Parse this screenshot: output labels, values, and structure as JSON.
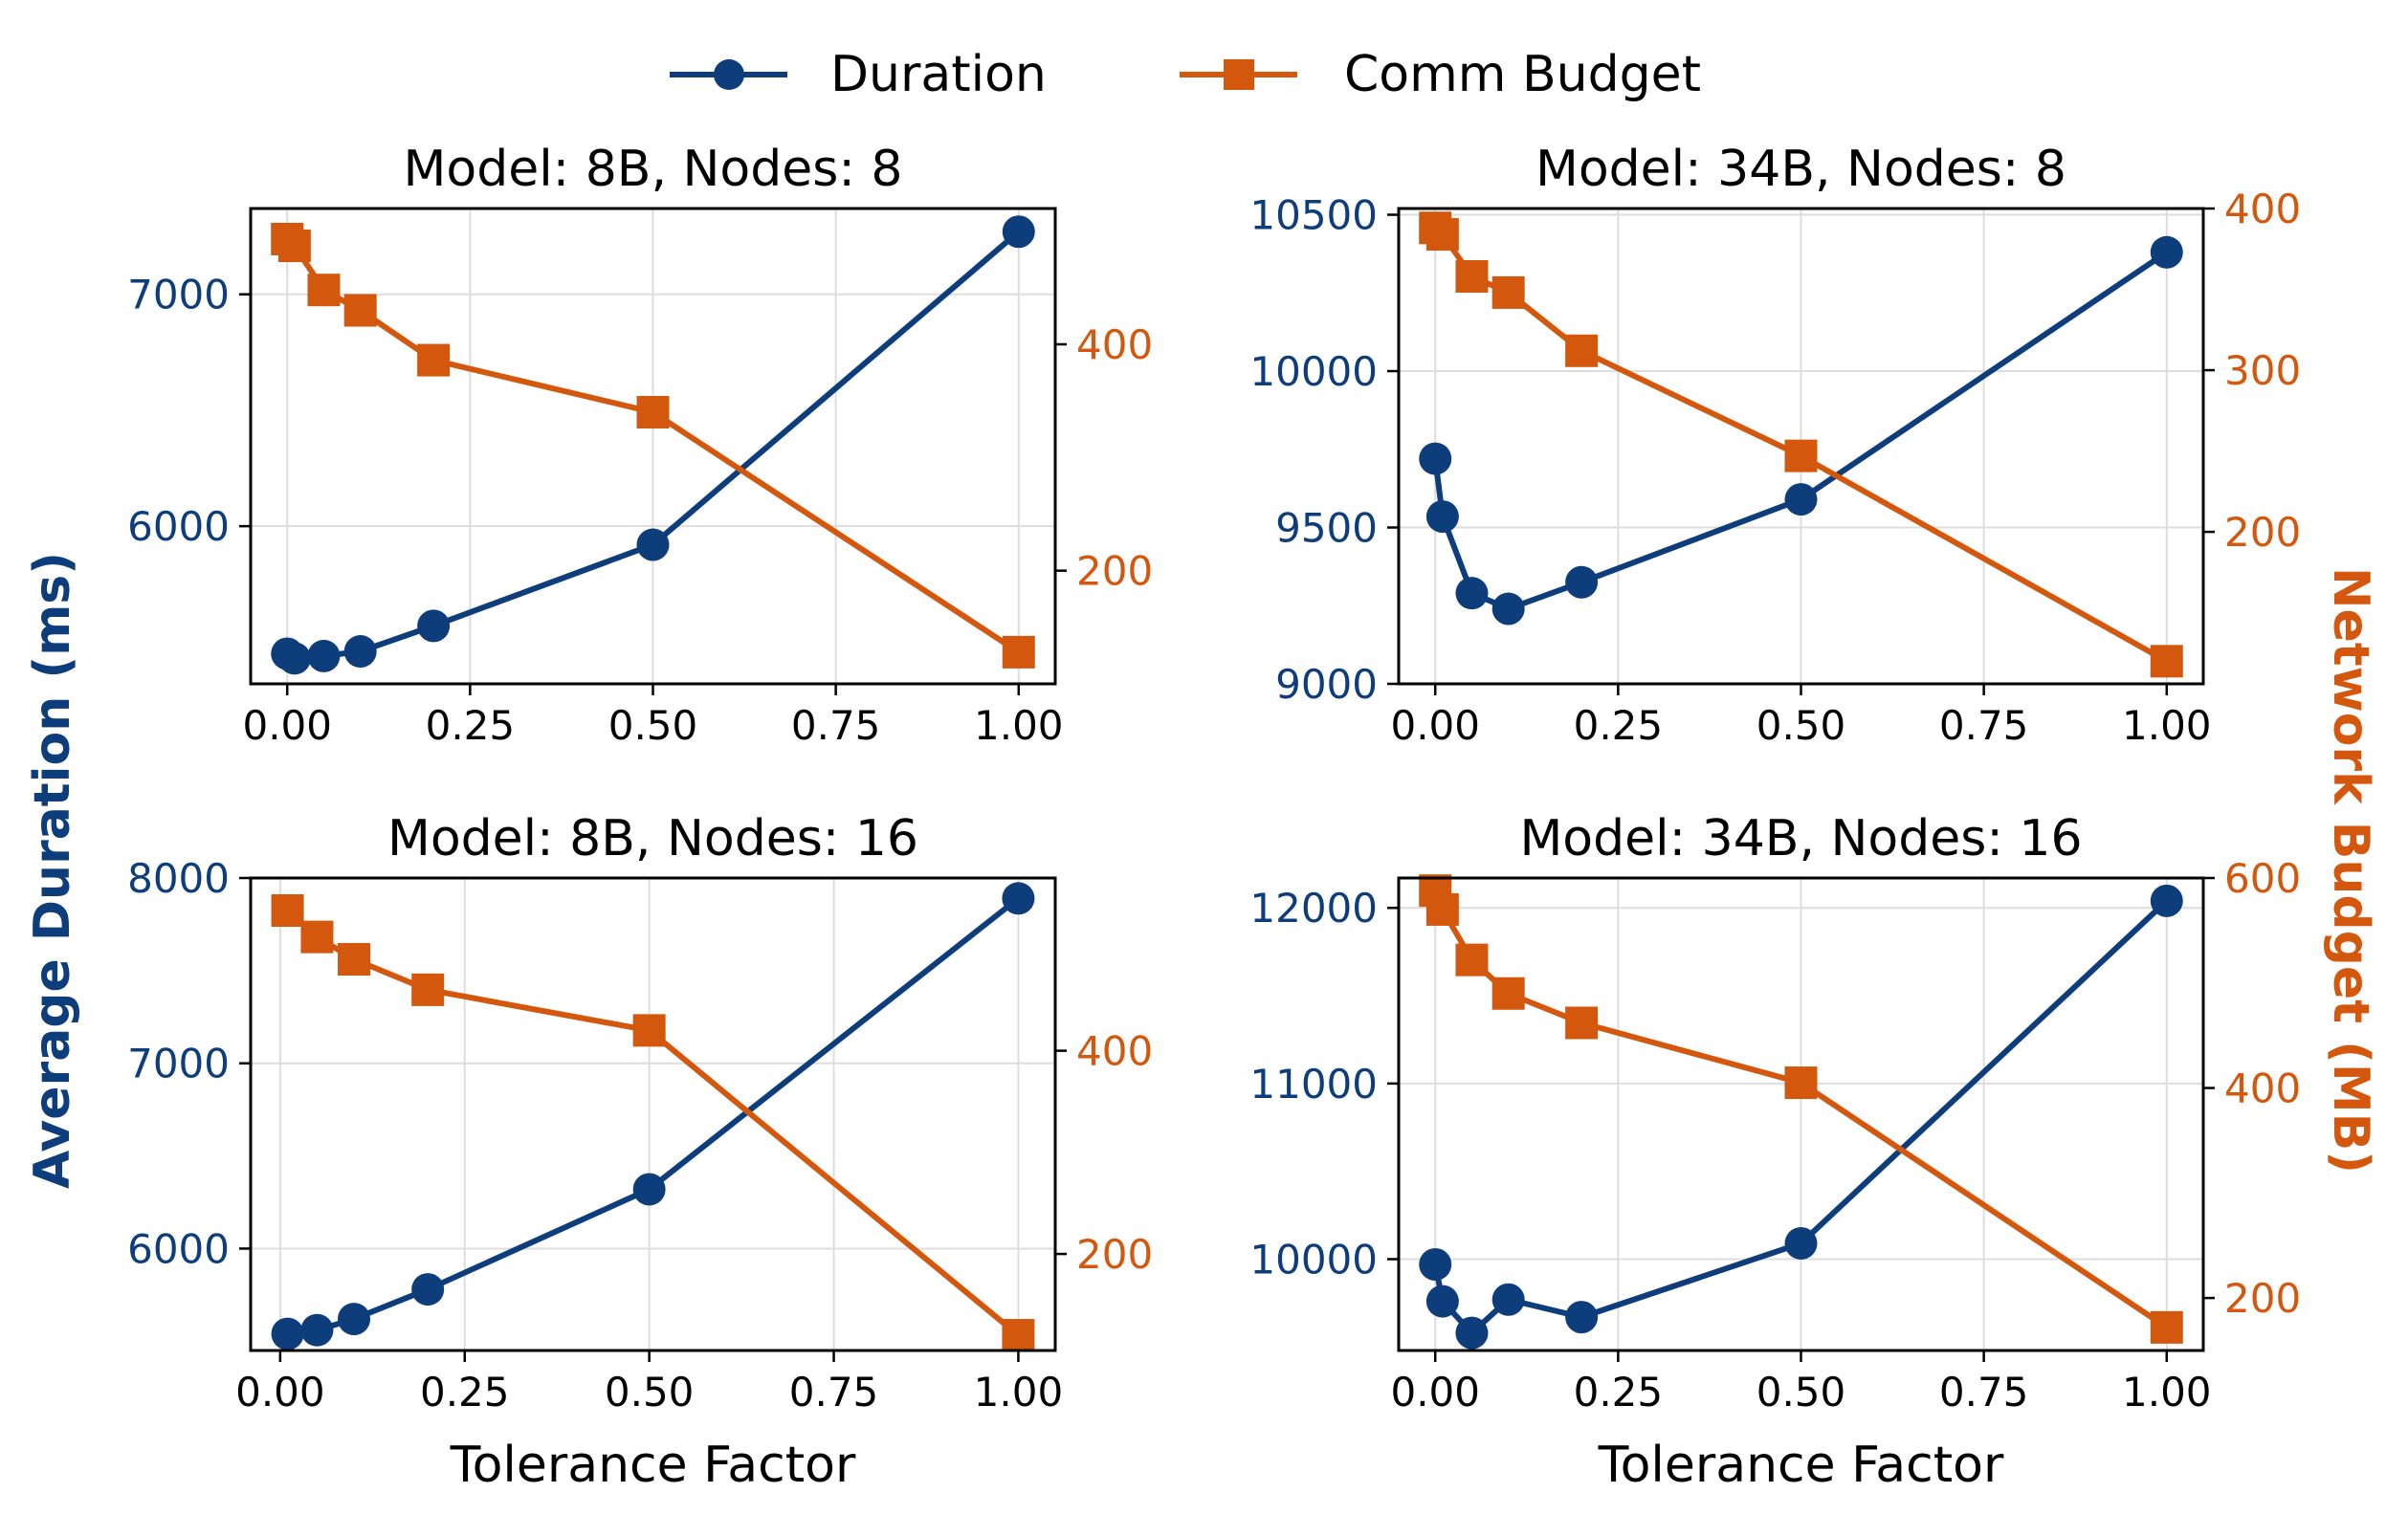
{
  "legend": {
    "items": [
      {
        "label": "Duration",
        "color": "#0d3d7a",
        "marker": "circle"
      },
      {
        "label": "Comm Budget",
        "color": "#d4570e",
        "marker": "square"
      }
    ]
  },
  "axes_labels": {
    "left": "Average Duration (ms)",
    "right": "Network Budget (MB)",
    "bottom": "Tolerance Factor"
  },
  "colors": {
    "duration": "#0d3d7a",
    "budget": "#d4570e",
    "grid": "#dddddd",
    "frame": "#000000"
  },
  "chart_data": [
    {
      "type": "line",
      "title": "Model: 8B, Nodes: 8",
      "xlabel": "",
      "x": [
        0.0,
        0.01,
        0.05,
        0.1,
        0.2,
        0.5,
        1.0
      ],
      "xlim": [
        -0.05,
        1.05
      ],
      "xticks": [
        0.0,
        0.25,
        0.5,
        0.75,
        1.0
      ],
      "xtick_labels": [
        "0.00",
        "0.25",
        "0.50",
        "0.75",
        "1.00"
      ],
      "series": [
        {
          "name": "Duration",
          "axis": "left",
          "values": [
            5450,
            5430,
            5440,
            5460,
            5570,
            5920,
            7270
          ]
        },
        {
          "name": "Comm Budget",
          "axis": "right",
          "values": [
            493,
            487,
            448,
            430,
            386,
            340,
            128
          ]
        }
      ],
      "ylim_left": [
        5320,
        7370
      ],
      "yticks_left": [
        6000,
        7000
      ],
      "ylim_right": [
        100,
        520
      ],
      "yticks_right": [
        200,
        400
      ]
    },
    {
      "type": "line",
      "title": "Model: 34B, Nodes: 8",
      "xlabel": "",
      "x": [
        0.0,
        0.01,
        0.05,
        0.1,
        0.2,
        0.5,
        1.0
      ],
      "xlim": [
        -0.05,
        1.05
      ],
      "xticks": [
        0.0,
        0.25,
        0.5,
        0.75,
        1.0
      ],
      "xtick_labels": [
        "0.00",
        "0.25",
        "0.50",
        "0.75",
        "1.00"
      ],
      "series": [
        {
          "name": "Duration",
          "axis": "left",
          "values": [
            9720,
            9535,
            9290,
            9240,
            9325,
            9590,
            10380
          ]
        },
        {
          "name": "Comm Budget",
          "axis": "right",
          "values": [
            388,
            384,
            358,
            348,
            312,
            247,
            120
          ]
        }
      ],
      "ylim_left": [
        9000,
        10520
      ],
      "yticks_left": [
        9000,
        9500,
        10000,
        10500
      ],
      "ylim_right": [
        106,
        400
      ],
      "yticks_right": [
        200,
        300,
        400
      ]
    },
    {
      "type": "line",
      "title": "Model: 8B, Nodes: 16",
      "xlabel": "Tolerance Factor",
      "x": [
        0.01,
        0.05,
        0.1,
        0.2,
        0.5,
        1.0
      ],
      "xlim": [
        -0.04,
        1.05
      ],
      "xticks": [
        0.0,
        0.25,
        0.5,
        0.75,
        1.0
      ],
      "xtick_labels": [
        "0.00",
        "0.25",
        "0.50",
        "0.75",
        "1.00"
      ],
      "series": [
        {
          "name": "Duration",
          "axis": "left",
          "values": [
            5540,
            5560,
            5620,
            5780,
            6320,
            7890
          ]
        },
        {
          "name": "Comm Budget",
          "axis": "right",
          "values": [
            538,
            512,
            490,
            460,
            420,
            120
          ]
        }
      ],
      "ylim_left": [
        5450,
        8000
      ],
      "yticks_left": [
        6000,
        7000,
        8000
      ],
      "ylim_right": [
        105,
        570
      ],
      "yticks_right": [
        200,
        400
      ]
    },
    {
      "type": "line",
      "title": "Model: 34B, Nodes: 16",
      "xlabel": "Tolerance Factor",
      "x": [
        0.0,
        0.01,
        0.05,
        0.1,
        0.2,
        0.5,
        1.0
      ],
      "xlim": [
        -0.05,
        1.05
      ],
      "xticks": [
        0.0,
        0.25,
        0.5,
        0.75,
        1.0
      ],
      "xtick_labels": [
        "0.00",
        "0.25",
        "0.50",
        "0.75",
        "1.00"
      ],
      "series": [
        {
          "name": "Duration",
          "axis": "left",
          "values": [
            9970,
            9760,
            9580,
            9770,
            9670,
            10090,
            12040
          ]
        },
        {
          "name": "Comm Budget",
          "axis": "right",
          "values": [
            588,
            570,
            522,
            490,
            462,
            405,
            172
          ]
        }
      ],
      "ylim_left": [
        9480,
        12170
      ],
      "yticks_left": [
        10000,
        11000,
        12000
      ],
      "ylim_right": [
        150,
        600
      ],
      "yticks_right": [
        200,
        400,
        600
      ]
    }
  ]
}
